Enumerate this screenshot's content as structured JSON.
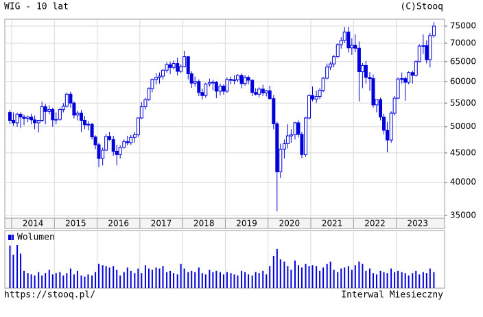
{
  "chart_data": {
    "type": "candlestick",
    "title": "WIG - 10 lat",
    "source": "(C)Stooq",
    "url": "https://stooq.pl/",
    "interval": "Interwal Miesieczny",
    "color": "#0000dd",
    "log_scale": true,
    "grid": true,
    "xlim": [
      2013.84,
      2024.13
    ],
    "xticks": [
      2014,
      2015,
      2016,
      2017,
      2018,
      2019,
      2020,
      2021,
      2022,
      2023
    ],
    "ylim": [
      34600,
      77100
    ],
    "yticks": [
      35000,
      40000,
      45000,
      50000,
      55000,
      60000,
      65000,
      70000,
      75000
    ],
    "x": [
      2013.96,
      2014.04,
      2014.13,
      2014.21,
      2014.29,
      2014.38,
      2014.46,
      2014.54,
      2014.63,
      2014.71,
      2014.79,
      2014.88,
      2014.96,
      2015.04,
      2015.13,
      2015.21,
      2015.29,
      2015.38,
      2015.46,
      2015.54,
      2015.63,
      2015.71,
      2015.79,
      2015.88,
      2015.96,
      2016.04,
      2016.13,
      2016.21,
      2016.29,
      2016.38,
      2016.46,
      2016.54,
      2016.63,
      2016.71,
      2016.79,
      2016.88,
      2016.96,
      2017.04,
      2017.13,
      2017.21,
      2017.29,
      2017.38,
      2017.46,
      2017.54,
      2017.63,
      2017.71,
      2017.79,
      2017.88,
      2017.96,
      2018.04,
      2018.13,
      2018.21,
      2018.29,
      2018.38,
      2018.46,
      2018.54,
      2018.63,
      2018.71,
      2018.79,
      2018.88,
      2018.96,
      2019.04,
      2019.13,
      2019.21,
      2019.29,
      2019.38,
      2019.46,
      2019.54,
      2019.63,
      2019.71,
      2019.79,
      2019.88,
      2019.96,
      2020.04,
      2020.13,
      2020.21,
      2020.29,
      2020.38,
      2020.46,
      2020.54,
      2020.63,
      2020.71,
      2020.79,
      2020.88,
      2020.96,
      2021.04,
      2021.13,
      2021.21,
      2021.29,
      2021.38,
      2021.46,
      2021.54,
      2021.63,
      2021.71,
      2021.79,
      2021.88,
      2021.96,
      2022.04,
      2022.13,
      2022.21,
      2022.29,
      2022.38,
      2022.46,
      2022.54,
      2022.63,
      2022.71,
      2022.79,
      2022.88,
      2022.96,
      2023.04,
      2023.13,
      2023.21,
      2023.29,
      2023.38,
      2023.46,
      2023.54,
      2023.63,
      2023.71,
      2023.79,
      2023.88
    ],
    "open": [
      53000,
      51300,
      50800,
      52600,
      52000,
      51700,
      52000,
      51400,
      50800,
      51300,
      54200,
      53200,
      53600,
      51400,
      51500,
      53600,
      54300,
      57000,
      55000,
      52400,
      52800,
      51300,
      50400,
      50500,
      48000,
      46500,
      44000,
      45500,
      48100,
      47500,
      45300,
      44700,
      46000,
      47100,
      46900,
      47900,
      48400,
      51800,
      54200,
      55800,
      58300,
      60500,
      61000,
      61300,
      62800,
      64200,
      63500,
      64500,
      62500,
      63700,
      66300,
      61900,
      59600,
      60000,
      57400,
      56700,
      59400,
      59700,
      59800,
      57700,
      58900,
      57700,
      60500,
      60300,
      60400,
      61500,
      59500,
      61000,
      60300,
      57400,
      57000,
      58200,
      57300,
      57800,
      56000,
      50600,
      41700,
      45700,
      46700,
      48200,
      48400,
      50800,
      48500,
      44700,
      51800,
      56700,
      55900,
      56500,
      57900,
      60800,
      63600,
      64400,
      66300,
      69600,
      70800,
      73200,
      68700,
      69400,
      68600,
      62400,
      64000,
      61000,
      60700,
      54600,
      55800,
      52000,
      49300,
      47400,
      52800,
      56100,
      60600,
      60700,
      59800,
      62200,
      61500,
      65000,
      69200,
      69300,
      65500,
      72200
    ],
    "high": [
      53500,
      53000,
      52900,
      53000,
      52500,
      52300,
      52700,
      52300,
      51300,
      55300,
      54800,
      54500,
      54000,
      53000,
      54000,
      55000,
      57400,
      57600,
      55400,
      53300,
      53500,
      52200,
      51200,
      50800,
      48300,
      46900,
      46000,
      48600,
      49000,
      48200,
      46500,
      46400,
      47500,
      48200,
      48400,
      49000,
      51900,
      55200,
      56200,
      58600,
      60700,
      62000,
      62200,
      63000,
      64800,
      65000,
      65300,
      66000,
      64300,
      67900,
      66500,
      62500,
      61200,
      60500,
      58300,
      59700,
      60700,
      60400,
      60100,
      59500,
      59300,
      61000,
      61200,
      61500,
      61800,
      62000,
      61600,
      61500,
      60500,
      58400,
      58600,
      59200,
      58000,
      59000,
      56800,
      51000,
      46700,
      47500,
      50500,
      49500,
      51000,
      51300,
      49000,
      52000,
      57000,
      58800,
      57800,
      58400,
      61100,
      64500,
      65000,
      66800,
      70000,
      71700,
      74700,
      74800,
      71400,
      72500,
      70500,
      64600,
      65200,
      62300,
      61700,
      55800,
      56200,
      52700,
      51000,
      53200,
      56600,
      61000,
      62200,
      61200,
      62500,
      62700,
      65300,
      69700,
      72500,
      70800,
      73000,
      76200
    ],
    "low": [
      50500,
      50200,
      50000,
      49800,
      50300,
      50900,
      50500,
      49500,
      48900,
      51000,
      50500,
      52600,
      50000,
      50500,
      51200,
      53000,
      54000,
      54000,
      51700,
      51300,
      49000,
      49500,
      49300,
      47500,
      45700,
      42500,
      42800,
      45300,
      47300,
      44500,
      42800,
      44000,
      45800,
      46400,
      46500,
      46900,
      48000,
      51600,
      53600,
      55500,
      57500,
      59300,
      59500,
      60500,
      62200,
      61800,
      63000,
      61500,
      62100,
      63500,
      60500,
      58500,
      58800,
      56600,
      55800,
      56200,
      58800,
      57900,
      56100,
      56700,
      56900,
      57300,
      59300,
      59300,
      59900,
      58400,
      59000,
      59300,
      56600,
      56700,
      56300,
      56600,
      56500,
      55800,
      49500,
      35600,
      40700,
      44000,
      45800,
      46900,
      47500,
      47900,
      44100,
      44300,
      51500,
      55400,
      55000,
      55900,
      57500,
      60500,
      62800,
      63500,
      66000,
      68500,
      70000,
      67400,
      66800,
      67500,
      55400,
      58400,
      59500,
      57800,
      54000,
      53000,
      51300,
      48500,
      45100,
      46900,
      52300,
      55900,
      59500,
      55500,
      59300,
      59500,
      61200,
      64800,
      67000,
      64500,
      63500,
      71600
    ],
    "close": [
      51300,
      50800,
      52600,
      52000,
      51700,
      52000,
      51400,
      50800,
      51300,
      54200,
      53200,
      53600,
      51400,
      51500,
      53600,
      54300,
      57000,
      55000,
      52400,
      52800,
      51300,
      50400,
      50500,
      48000,
      46500,
      44000,
      45500,
      48100,
      47500,
      45300,
      44700,
      46000,
      47100,
      46900,
      47900,
      48400,
      51800,
      54200,
      55800,
      58300,
      60500,
      61000,
      61300,
      62800,
      64200,
      63500,
      64500,
      62500,
      63700,
      66300,
      61900,
      59600,
      60000,
      57400,
      56700,
      59400,
      59700,
      59800,
      57700,
      58900,
      57700,
      60500,
      60300,
      60400,
      61500,
      59500,
      61000,
      60300,
      57400,
      57000,
      58200,
      57300,
      57800,
      56000,
      50600,
      41700,
      45700,
      46700,
      48200,
      48400,
      50800,
      48500,
      44700,
      51800,
      56700,
      55900,
      56500,
      57900,
      60800,
      63600,
      64400,
      66300,
      69600,
      70800,
      73200,
      68700,
      69400,
      68600,
      62400,
      64000,
      61000,
      60700,
      54600,
      55800,
      52000,
      49300,
      47400,
      52800,
      56100,
      60600,
      60700,
      59800,
      62200,
      61500,
      65000,
      69200,
      69300,
      65500,
      72200,
      75000
    ],
    "volume": {
      "name": "Wolumen",
      "ylim": [
        0,
        100
      ],
      "values": [
        74,
        58,
        75,
        60,
        30,
        26,
        24,
        22,
        28,
        22,
        26,
        32,
        24,
        26,
        28,
        22,
        26,
        34,
        24,
        30,
        22,
        20,
        24,
        22,
        28,
        42,
        40,
        38,
        36,
        38,
        32,
        22,
        28,
        36,
        30,
        26,
        34,
        26,
        40,
        34,
        32,
        36,
        34,
        38,
        28,
        30,
        26,
        24,
        42,
        34,
        28,
        30,
        28,
        36,
        26,
        24,
        32,
        28,
        30,
        28,
        24,
        28,
        26,
        24,
        22,
        30,
        28,
        24,
        22,
        28,
        26,
        30,
        24,
        38,
        56,
        68,
        50,
        46,
        38,
        32,
        48,
        40,
        36,
        42,
        38,
        40,
        38,
        30,
        36,
        42,
        46,
        32,
        28,
        34,
        36,
        38,
        32,
        40,
        46,
        42,
        30,
        34,
        26,
        24,
        30,
        28,
        26,
        34,
        28,
        30,
        28,
        26,
        22,
        26,
        30,
        24,
        28,
        26,
        34,
        28
      ]
    }
  }
}
